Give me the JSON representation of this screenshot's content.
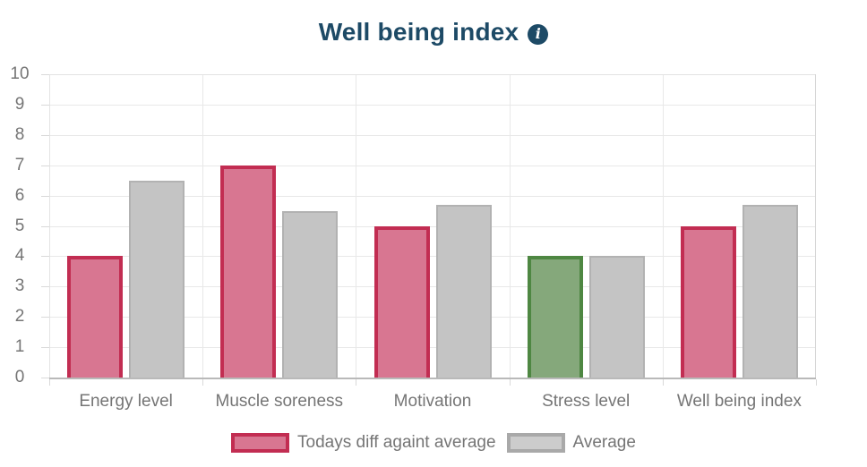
{
  "title": {
    "text": "Well being index",
    "info_icon": "info"
  },
  "colors": {
    "title": "#1d4a66",
    "axis_label": "#757575",
    "grid_line": "#e8e8e8",
    "plot_border_light": "#e3e3e3",
    "plot_border_right": "#d6d6d6",
    "axis_line_bottom": "#b9b9b9",
    "tick_mark": "#d9d9d9",
    "today_fill": "#d87691",
    "today_border": "#c22d52",
    "good_fill": "#85a87b",
    "good_border": "#4e8742",
    "average_fill": "#c4c4c4",
    "average_border": "#b2b2b2",
    "legend_avg_fill": "#cccccc",
    "legend_avg_border": "#a9a9a9"
  },
  "chart_data": {
    "type": "bar",
    "title": "Well being index",
    "categories": [
      "Energy level",
      "Muscle soreness",
      "Motivation",
      "Stress level",
      "Well being index"
    ],
    "series": [
      {
        "name": "Todays diff againt average",
        "values": [
          4,
          7,
          5,
          4,
          5
        ],
        "styles": [
          "today",
          "today",
          "today",
          "good",
          "today"
        ]
      },
      {
        "name": "Average",
        "values": [
          6.5,
          5.5,
          5.7,
          4,
          5.7
        ],
        "styles": [
          "average",
          "average",
          "average",
          "average",
          "average"
        ]
      }
    ],
    "xlabel": "",
    "ylabel": "",
    "ylim": [
      0,
      10
    ],
    "yticks": [
      0,
      1,
      2,
      3,
      4,
      5,
      6,
      7,
      8,
      9,
      10
    ],
    "grid": true,
    "legend_position": "bottom"
  },
  "legend": {
    "items": [
      {
        "label": "Todays diff againt average",
        "style": "today"
      },
      {
        "label": "Average",
        "style": "legend_avg"
      }
    ]
  }
}
